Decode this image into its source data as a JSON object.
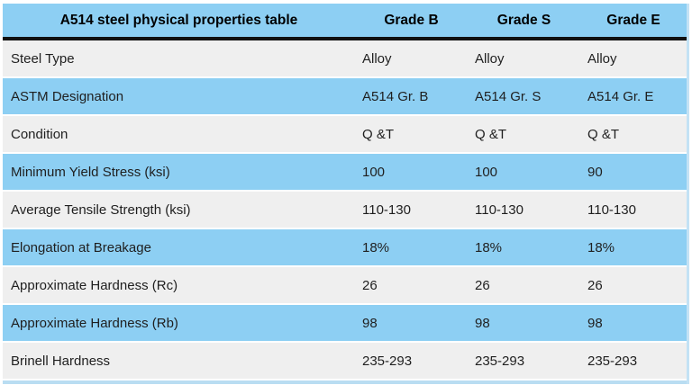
{
  "chart_data": {
    "type": "table",
    "title": "A514 steel physical properties table",
    "columns": [
      "Grade B",
      "Grade S",
      "Grade E"
    ],
    "rows": [
      {
        "label": "Steel Type",
        "values": [
          "Alloy",
          "Alloy",
          "Alloy"
        ]
      },
      {
        "label": "ASTM Designation",
        "values": [
          "A514 Gr. B",
          "A514 Gr. S",
          "A514 Gr. E"
        ]
      },
      {
        "label": "Condition",
        "values": [
          "Q &T",
          "Q &T",
          "Q &T"
        ]
      },
      {
        "label": "Minimum Yield Stress (ksi)",
        "values": [
          "100",
          "100",
          "90"
        ]
      },
      {
        "label": "Average Tensile Strength (ksi)",
        "values": [
          "110-130",
          "110-130",
          "110-130"
        ]
      },
      {
        "label": "Elongation at Breakage",
        "values": [
          "18%",
          "18%",
          "18%"
        ]
      },
      {
        "label": "Approximate Hardness (Rc)",
        "values": [
          "26",
          "26",
          "26"
        ]
      },
      {
        "label": "Approximate Hardness (Rb)",
        "values": [
          "98",
          "98",
          "98"
        ]
      },
      {
        "label": "Brinell Hardness",
        "values": [
          "235-293",
          "235-293",
          "235-293"
        ]
      }
    ],
    "layout": {
      "first_row_shade": "gray",
      "alternating_shades": [
        "gray",
        "blue"
      ]
    }
  },
  "colors": {
    "header_bg": "#8dcff3",
    "row_blue": "#8dcff3",
    "row_gray": "#efefef",
    "header_divider": "#111111",
    "edge_strip": "#c3e2f5",
    "partial_row_blue": "#b9ddf2",
    "header_text": "#000000",
    "body_text": "#1f1f1f"
  }
}
